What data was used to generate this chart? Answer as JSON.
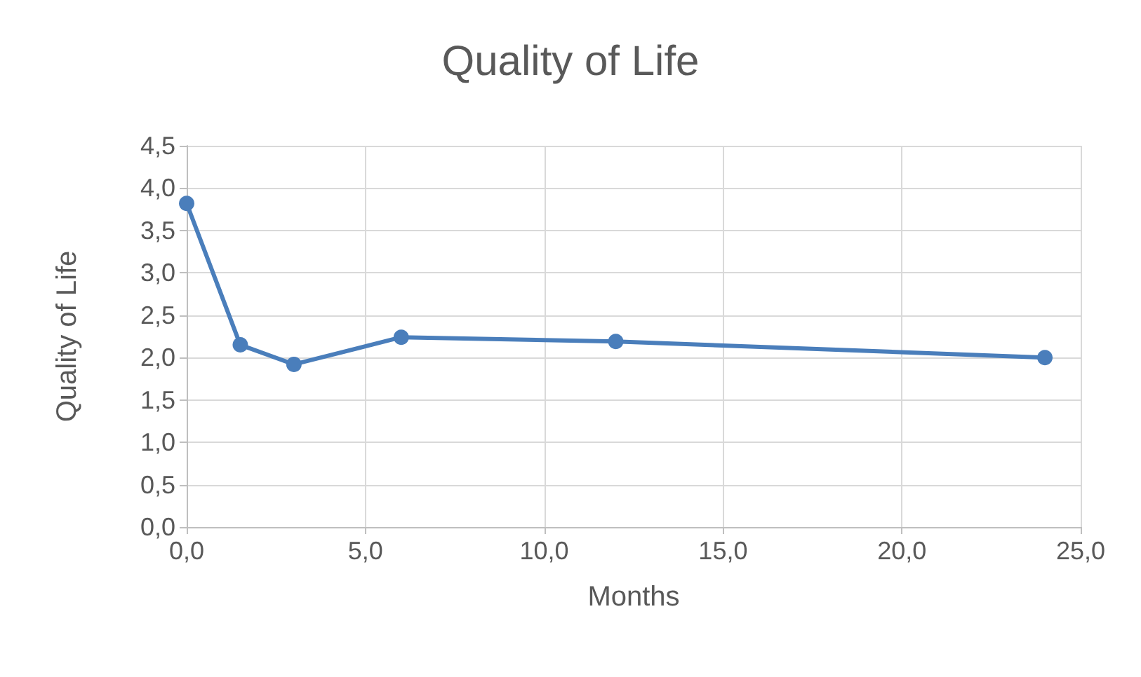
{
  "chart_data": {
    "type": "line",
    "title": "Quality of Life",
    "xlabel": "Months",
    "ylabel": "Quality of Life",
    "x": [
      0,
      1.5,
      3,
      6,
      12,
      24
    ],
    "series": [
      {
        "color": "#4a7ebb",
        "values": [
          3.82,
          2.15,
          1.92,
          2.24,
          2.19,
          2.0
        ]
      }
    ],
    "xlim": [
      0,
      25
    ],
    "xticks": [
      {
        "value": 0,
        "label": "0,0"
      },
      {
        "value": 5,
        "label": "5,0"
      },
      {
        "value": 10,
        "label": "10,0"
      },
      {
        "value": 15,
        "label": "15,0"
      },
      {
        "value": 20,
        "label": "20,0"
      },
      {
        "value": 25,
        "label": "25,0"
      }
    ],
    "ylim": [
      0,
      4.5
    ],
    "yticks": [
      {
        "value": 0,
        "label": "0,0"
      },
      {
        "value": 0.5,
        "label": "0,5"
      },
      {
        "value": 1,
        "label": "1,0"
      },
      {
        "value": 1.5,
        "label": "1,5"
      },
      {
        "value": 2,
        "label": "2,0"
      },
      {
        "value": 2.5,
        "label": "2,5"
      },
      {
        "value": 3,
        "label": "3,0"
      },
      {
        "value": 3.5,
        "label": "3,5"
      },
      {
        "value": 4,
        "label": "4,0"
      },
      {
        "value": 4.5,
        "label": "4,5"
      }
    ],
    "grid": true,
    "marker": "circle",
    "line_style": "solid"
  }
}
